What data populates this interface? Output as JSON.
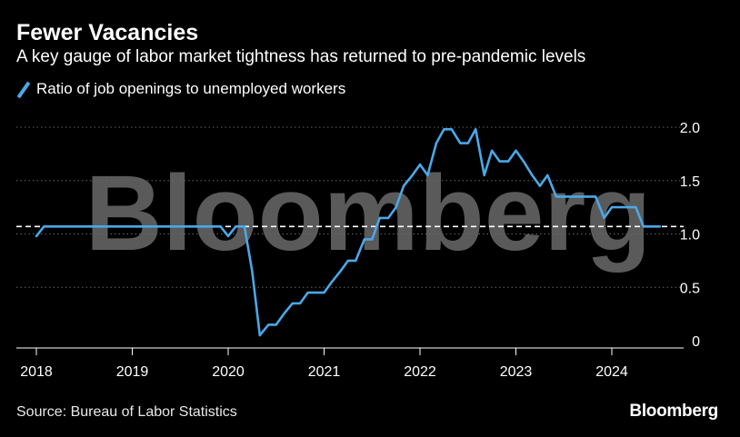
{
  "header": {
    "title": "Fewer Vacancies",
    "subtitle": "A key gauge of labor market tightness has returned to pre-pandemic levels"
  },
  "footer": {
    "source": "Source: Bureau of Labor Statistics",
    "brand": "Bloomberg"
  },
  "watermark": "Bloomberg",
  "colors": {
    "background": "#000000",
    "series": "#4aa8e8",
    "grid": "#666666",
    "reference": "#ffffff",
    "watermark": "#5a5a5a"
  },
  "chart_data": {
    "type": "line",
    "title": "Fewer Vacancies",
    "subtitle": "A key gauge of labor market tightness has returned to pre-pandemic levels",
    "xlabel": "",
    "ylabel": "",
    "xlim": [
      2018.0,
      2024.75
    ],
    "ylim": [
      0,
      2.0
    ],
    "y_ticks": [
      0,
      0.5,
      1.0,
      1.5,
      2.0
    ],
    "y_tick_labels": [
      "0",
      "0.5",
      "1.0",
      "1.5",
      "2.0"
    ],
    "x_ticks": [
      2018,
      2019,
      2020,
      2021,
      2022,
      2023,
      2024
    ],
    "x_tick_labels": [
      "2018",
      "2019",
      "2020",
      "2021",
      "2022",
      "2023",
      "2024"
    ],
    "grid": true,
    "legend": "top-left",
    "reference_line": {
      "y": 1.07,
      "style": "dashed"
    },
    "series": [
      {
        "name": "Ratio of job openings to unemployed workers",
        "x": [
          2018.0,
          2018.08,
          2018.17,
          2018.5,
          2019.0,
          2019.5,
          2019.92,
          2020.0,
          2020.08,
          2020.17,
          2020.25,
          2020.33,
          2020.42,
          2020.5,
          2020.58,
          2020.67,
          2020.75,
          2020.83,
          2020.92,
          2021.0,
          2021.08,
          2021.17,
          2021.25,
          2021.33,
          2021.42,
          2021.5,
          2021.58,
          2021.67,
          2021.75,
          2021.83,
          2021.92,
          2022.0,
          2022.08,
          2022.17,
          2022.25,
          2022.33,
          2022.42,
          2022.5,
          2022.58,
          2022.67,
          2022.75,
          2022.83,
          2022.92,
          2023.0,
          2023.08,
          2023.17,
          2023.25,
          2023.33,
          2023.42,
          2023.5,
          2023.58,
          2023.67,
          2023.75,
          2023.83,
          2023.92,
          2024.0,
          2024.08,
          2024.17,
          2024.25,
          2024.33,
          2024.42,
          2024.5
        ],
        "values": [
          0.98,
          1.07,
          1.07,
          1.07,
          1.07,
          1.07,
          1.07,
          0.98,
          1.07,
          1.07,
          0.65,
          0.05,
          0.15,
          0.15,
          0.25,
          0.35,
          0.35,
          0.45,
          0.45,
          0.45,
          0.55,
          0.65,
          0.75,
          0.75,
          0.95,
          0.95,
          1.15,
          1.15,
          1.25,
          1.45,
          1.55,
          1.65,
          1.55,
          1.85,
          1.98,
          1.98,
          1.85,
          1.85,
          1.98,
          1.55,
          1.78,
          1.68,
          1.68,
          1.78,
          1.68,
          1.55,
          1.45,
          1.55,
          1.35,
          1.35,
          1.35,
          1.35,
          1.35,
          1.35,
          1.15,
          1.25,
          1.25,
          1.25,
          1.25,
          1.07,
          1.07,
          1.07
        ]
      }
    ]
  }
}
